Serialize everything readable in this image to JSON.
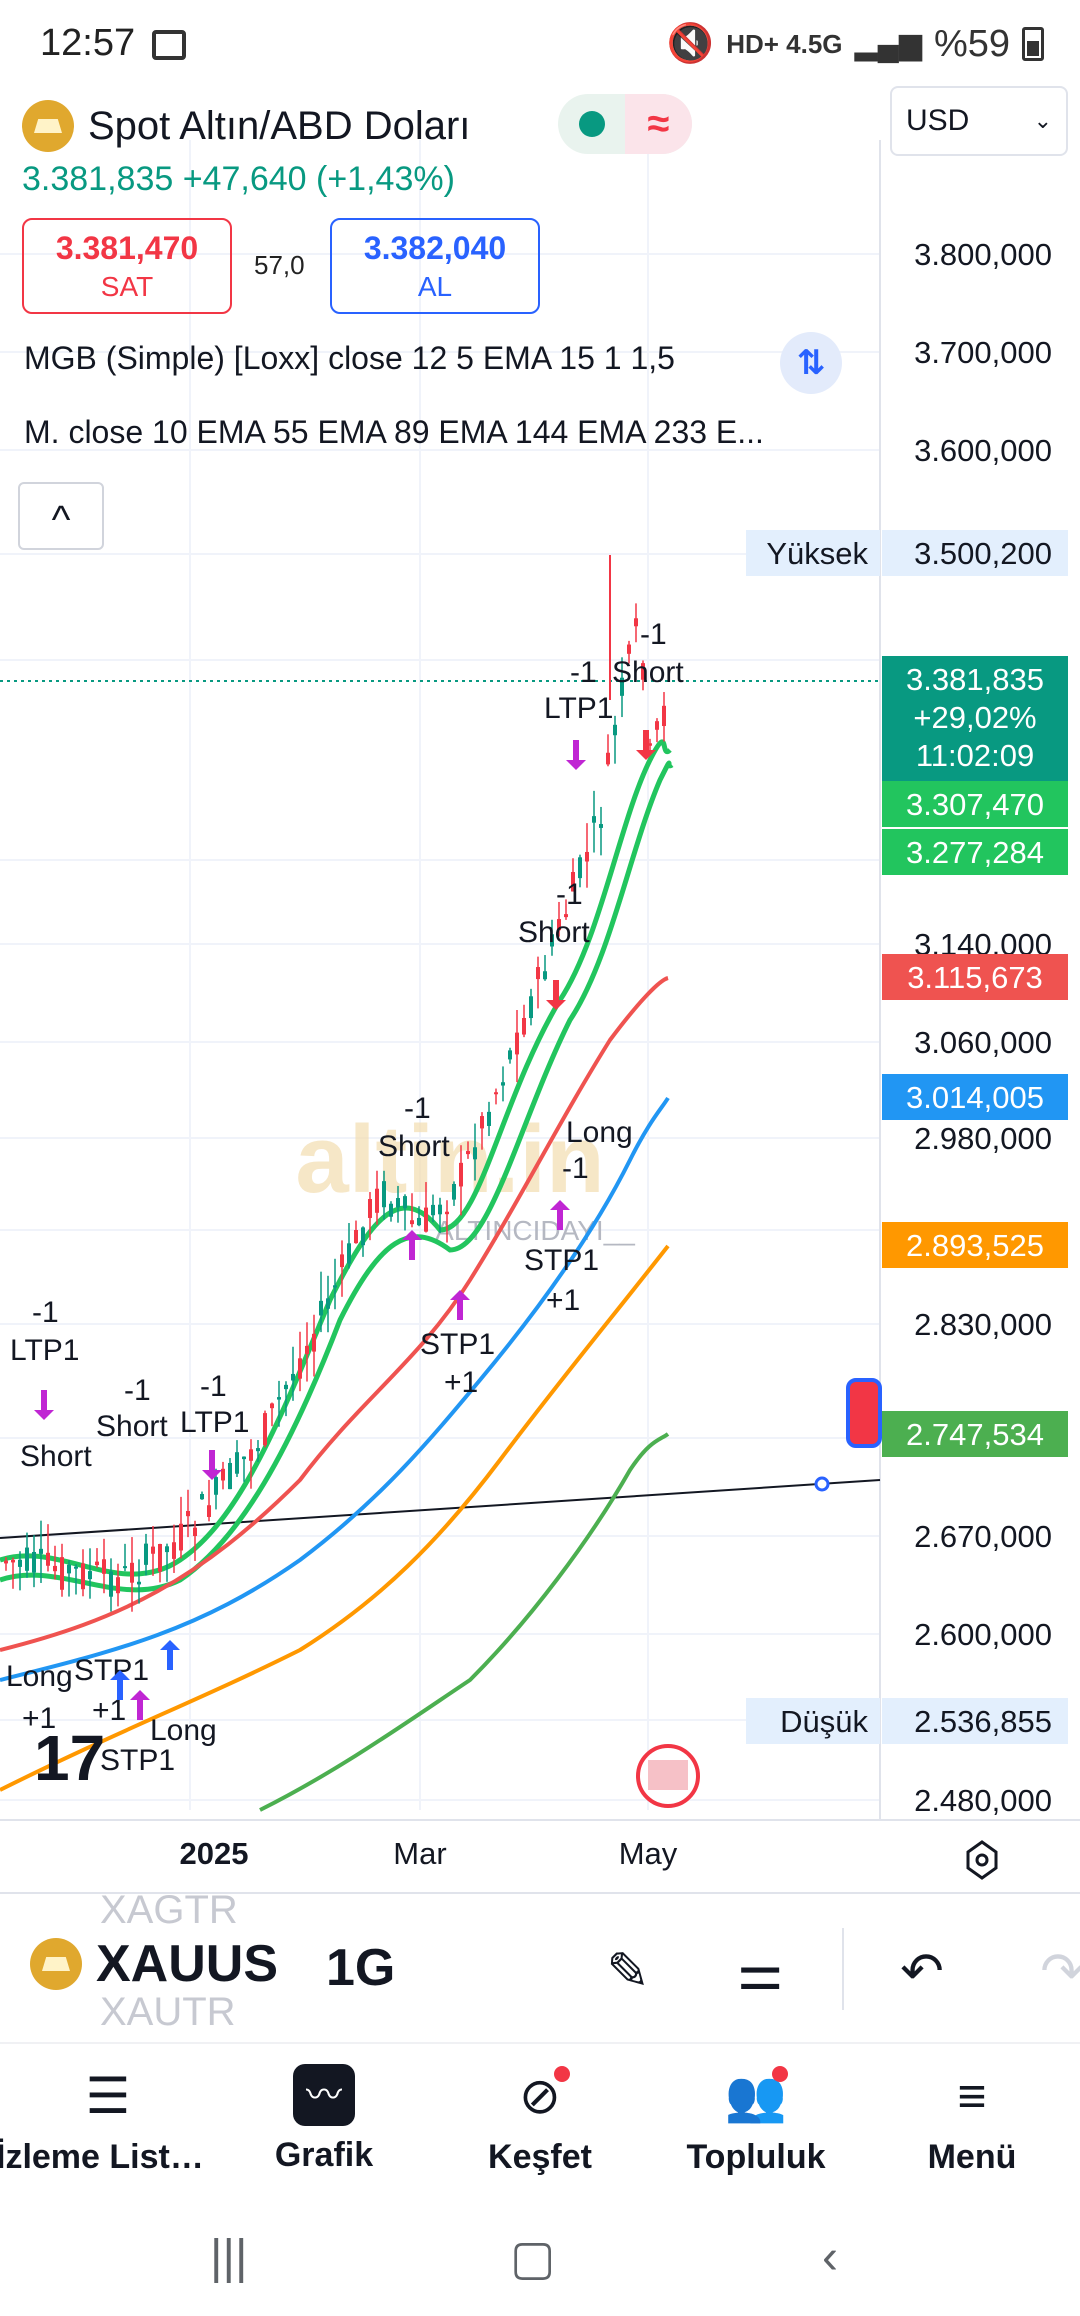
{
  "status_bar": {
    "time": "12:57",
    "network": "HD+ 4.5G",
    "battery": "%59"
  },
  "header": {
    "title": "Spot Altın/ABD Doları",
    "currency": "USD",
    "price_line": "3.381,835  +47,640 (+1,43%)",
    "sell_value": "3.381,470",
    "sell_label": "SAT",
    "spread": "57,0",
    "buy_value": "3.382,040",
    "buy_label": "AL",
    "indicator_1": "MGB (Simple) [Loxx] close 12 5 EMA 15 1 1,5",
    "indicator_2": "M. close 10 EMA 55 EMA 89 EMA 144 EMA 233 E..."
  },
  "chart_data": {
    "type": "candlestick",
    "title": "Spot Altın/ABD Doları",
    "interval": "1G",
    "price_scale": [
      "3.800,000",
      "3.700,000",
      "3.600,000",
      "3.140,000",
      "3.060,000",
      "2.980,000",
      "2.830,000",
      "2.670,000",
      "2.600,000",
      "2.480,000"
    ],
    "time_labels": [
      "2025",
      "Mar",
      "May"
    ],
    "high_label": "Yüksek",
    "high_value": "3.500,200",
    "low_label": "Düşük",
    "low_value": "2.536,855",
    "last_price": "3.381,835",
    "last_change": "+29,02%",
    "countdown": "11:02:09",
    "ema_values": [
      {
        "value": "3.307,470",
        "color": "#22c55e"
      },
      {
        "value": "3.277,284",
        "color": "#22c55e"
      },
      {
        "value": "3.115,673",
        "color": "#ef5350"
      },
      {
        "value": "3.014,005",
        "color": "#2196f3"
      },
      {
        "value": "2.893,525",
        "color": "#ff9800"
      },
      {
        "value": "2.747,534",
        "color": "#4caf50"
      }
    ],
    "annotations": [
      "-1 LTP1",
      "-1 Short",
      "Long +1",
      "STP1 +1",
      "STP1 +1",
      "-1 Short",
      "-1 LTP1",
      "-1 Short",
      "-1 Short",
      "Long -1",
      "STP1 +1",
      "STP1 +1",
      "-1 Short",
      "-1 LTP1",
      "-1 Short",
      "Long",
      "STP1 +1"
    ],
    "watermark": "altin.in",
    "watermark_sub": "ALTINCIDAYI__"
  },
  "toolbar": {
    "symbol": "XAUUSD",
    "ghost_top": "XAGTR",
    "ghost_bottom": "XAUTR",
    "interval": "1G"
  },
  "nav": {
    "items": [
      {
        "label": "İzleme Listesi",
        "icon": "list-icon"
      },
      {
        "label": "Grafik",
        "icon": "chart-icon"
      },
      {
        "label": "Keşfet",
        "icon": "compass-icon"
      },
      {
        "label": "Topluluk",
        "icon": "people-icon"
      },
      {
        "label": "Menü",
        "icon": "menu-icon"
      }
    ]
  }
}
